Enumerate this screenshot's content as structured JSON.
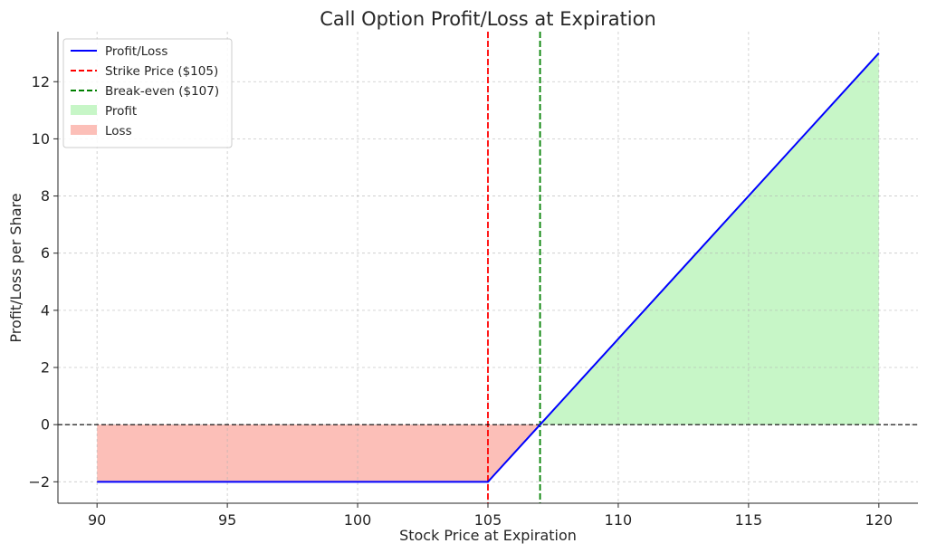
{
  "chart_data": {
    "type": "line",
    "title": "Call Option Profit/Loss at Expiration",
    "xlabel": "Stock Price at Expiration",
    "ylabel": "Profit/Loss per Share",
    "xlim": [
      88.5,
      121.5
    ],
    "ylim": [
      -2.75,
      13.75
    ],
    "xticks": [
      90,
      95,
      100,
      105,
      110,
      115,
      120
    ],
    "yticks": [
      -2,
      0,
      2,
      4,
      6,
      8,
      10,
      12
    ],
    "xtick_labels": [
      "90",
      "95",
      "100",
      "105",
      "110",
      "115",
      "120"
    ],
    "ytick_labels": [
      "−2",
      "0",
      "2",
      "4",
      "6",
      "8",
      "10",
      "12"
    ],
    "grid": true,
    "legend_position": "top-left",
    "series": [
      {
        "name": "Profit/Loss",
        "color": "#0000ff",
        "x": [
          90,
          105,
          105.2,
          107,
          120
        ],
        "y": [
          -2,
          -2,
          -1.8,
          0,
          13
        ]
      }
    ],
    "reference_lines": [
      {
        "name": "Strike Price ($105)",
        "orientation": "vertical",
        "x": 105,
        "color": "#ff0000",
        "style": "dashed"
      },
      {
        "name": "Break-even ($107)",
        "orientation": "vertical",
        "x": 107,
        "color": "#008000",
        "style": "dashed"
      },
      {
        "name": "",
        "orientation": "horizontal",
        "y": 0,
        "color": "#000000",
        "style": "dashed"
      }
    ],
    "fills": [
      {
        "name": "Profit",
        "color": "#90ee90",
        "x_from": 107,
        "x_to": 120
      },
      {
        "name": "Loss",
        "color": "#fa8072",
        "x_from": 90,
        "x_to": 107
      }
    ],
    "legend": [
      {
        "label": "Profit/Loss",
        "kind": "line",
        "color": "#0000ff",
        "style": "solid"
      },
      {
        "label": "Strike Price ($105)",
        "kind": "line",
        "color": "#ff0000",
        "style": "dashed"
      },
      {
        "label": "Break-even ($107)",
        "kind": "line",
        "color": "#008000",
        "style": "dashed"
      },
      {
        "label": "Profit",
        "kind": "patch",
        "color": "#90ee90"
      },
      {
        "label": "Loss",
        "kind": "patch",
        "color": "#fa8072"
      }
    ]
  }
}
